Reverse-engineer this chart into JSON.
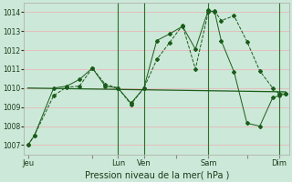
{
  "xlabel": "Pression niveau de la mer( hPa )",
  "ylim": [
    1006.5,
    1014.5
  ],
  "yticks": [
    1007,
    1008,
    1009,
    1010,
    1011,
    1012,
    1013,
    1014
  ],
  "bg_color": "#cce8d8",
  "grid_color": "#e8b8b8",
  "line_color": "#1a5c1a",
  "xtick_labels": [
    "Jeu",
    "",
    "Lun",
    "Ven",
    "",
    "Sam",
    "",
    "Dim"
  ],
  "xtick_positions": [
    0,
    5,
    7,
    9,
    11.5,
    14,
    17,
    19.5
  ],
  "vline_positions": [
    7,
    9,
    14,
    19.5
  ],
  "xlim": [
    -0.3,
    20.3
  ],
  "series1_x": [
    0,
    0.5,
    2,
    3,
    4,
    5,
    6,
    7,
    8,
    9,
    10,
    11,
    12,
    13,
    14,
    14.5,
    15,
    16,
    17,
    18,
    19,
    19.5,
    20
  ],
  "series1_y": [
    1007.0,
    1007.5,
    1009.6,
    1010.05,
    1010.1,
    1011.05,
    1010.2,
    1010.0,
    1009.15,
    1010.0,
    1011.5,
    1012.4,
    1013.3,
    1011.0,
    1014.0,
    1014.05,
    1013.55,
    1013.8,
    1012.45,
    1010.9,
    1010.0,
    1009.7,
    1009.7
  ],
  "series2_x": [
    0,
    0.5,
    2,
    3,
    4,
    5,
    6,
    7,
    8,
    9,
    10,
    11,
    12,
    13,
    14,
    14.5,
    15,
    16,
    17,
    18,
    19,
    19.5,
    20
  ],
  "series2_y": [
    1007.0,
    1007.5,
    1010.0,
    1010.1,
    1010.45,
    1011.05,
    1010.1,
    1010.0,
    1009.2,
    1010.0,
    1012.5,
    1012.85,
    1013.25,
    1012.05,
    1014.1,
    1014.0,
    1012.5,
    1010.85,
    1008.15,
    1008.0,
    1009.5,
    1009.6,
    1009.7
  ],
  "series3_x": [
    0,
    20
  ],
  "series3_y": [
    1010.0,
    1009.8
  ]
}
